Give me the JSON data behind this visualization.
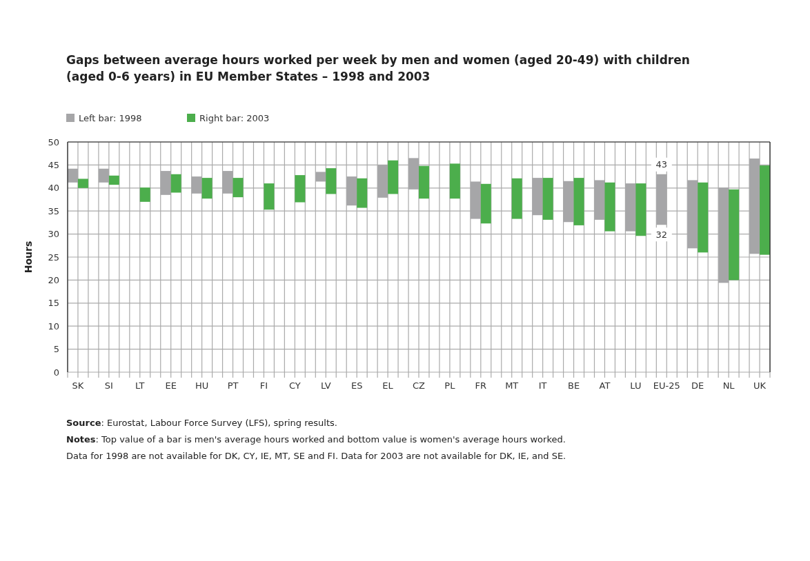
{
  "chart_data": {
    "type": "bar",
    "title": "Gaps between average hours worked per week by men and women (aged 20-49) with children (aged 0-6 years) in EU Member States – 1998 and 2003",
    "ylabel": "Hours",
    "categories": [
      "SK",
      "SI",
      "LT",
      "EE",
      "HU",
      "PT",
      "FI",
      "CY",
      "LV",
      "ES",
      "EL",
      "CZ",
      "PL",
      "FR",
      "MT",
      "IT",
      "BE",
      "AT",
      "LU",
      "EU-25",
      "DE",
      "NL",
      "UK"
    ],
    "series": [
      {
        "name": "Left bar: 1998",
        "color": "#a6a6a8",
        "base": [
          41.2,
          41.2,
          null,
          38.5,
          38.8,
          38.8,
          null,
          null,
          41.4,
          36.2,
          37.9,
          39.7,
          null,
          33.3,
          null,
          34.1,
          32.6,
          33.1,
          30.6,
          32,
          26.9,
          19.4,
          25.7
        ],
        "values": [
          3.0,
          3.0,
          null,
          5.2,
          3.7,
          4.9,
          null,
          null,
          2.1,
          6.3,
          7.1,
          6.8,
          null,
          8.1,
          null,
          8.1,
          8.9,
          8.6,
          10.4,
          11,
          14.8,
          20.7,
          20.7
        ]
      },
      {
        "name": "Right bar: 2003",
        "color": "#4cae4c",
        "base": [
          40.0,
          40.7,
          37.0,
          39.0,
          37.7,
          38.0,
          35.3,
          36.9,
          38.7,
          35.7,
          38.7,
          37.7,
          37.7,
          32.3,
          33.3,
          33.1,
          31.9,
          30.6,
          29.6,
          null,
          26.0,
          20.0,
          25.5
        ],
        "values": [
          2.0,
          2.0,
          3.1,
          4.0,
          4.5,
          4.2,
          5.7,
          5.9,
          5.6,
          6.4,
          7.3,
          7.1,
          7.6,
          8.6,
          8.8,
          9.1,
          10.3,
          10.6,
          11.4,
          null,
          15.2,
          19.7,
          19.4
        ]
      }
    ],
    "ylim": [
      0,
      50
    ],
    "yticks": [
      0,
      5,
      10,
      15,
      20,
      25,
      30,
      35,
      40,
      45,
      50
    ],
    "grid": true,
    "legend": "top left",
    "annotations": [
      {
        "text": "43",
        "x": "EU-25",
        "y": 43
      },
      {
        "text": "32",
        "x": "EU-25",
        "y": 32
      },
      "Source: Eurostat, Labour Force Survey (LFS), spring results.",
      "Notes: Top value of a bar is men's average hours worked and bottom value is women's average hours worked.",
      "Data for 1998 are not available for DK, CY, IE, MT, SE and FI. Data for 2003 are not available for DK, IE, and SE."
    ]
  }
}
